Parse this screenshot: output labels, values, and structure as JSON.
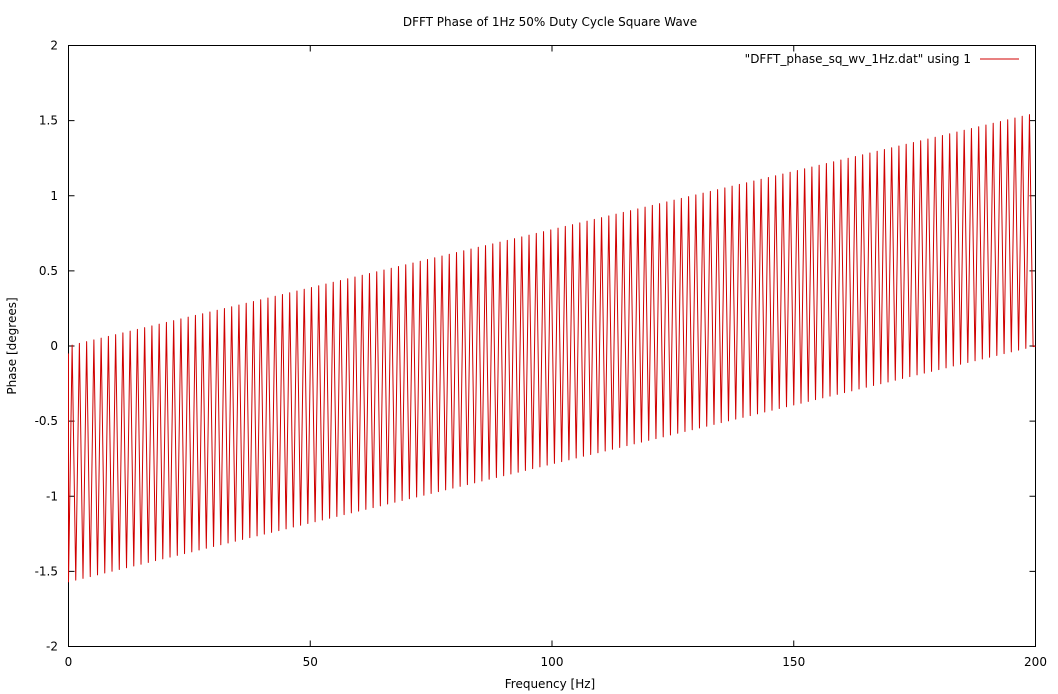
{
  "chart_data": {
    "type": "line",
    "title": "DFFT Phase of 1Hz 50% Duty Cycle Square Wave",
    "xlabel": "Frequency [Hz]",
    "ylabel": "Phase [degrees]",
    "xlim": [
      0,
      200
    ],
    "ylim": [
      -2,
      2
    ],
    "x_ticks": [
      0,
      50,
      100,
      150,
      200
    ],
    "y_ticks": [
      -2,
      -1.5,
      -1,
      -0.5,
      0,
      0.5,
      1,
      1.5,
      2
    ],
    "x_tick_labels": [
      "0",
      "50",
      "100",
      "150",
      "200"
    ],
    "y_tick_labels": [
      "-2",
      "-1.5",
      "-1",
      "-0.5",
      "0",
      "0.5",
      "1",
      "1.5",
      "2"
    ],
    "grid": false,
    "legend_position": "top-right",
    "series": [
      {
        "name": "\"DFFT_phase_sq_wv_1Hz.dat\" using 1",
        "color": "#d00000",
        "pattern": "sawtooth",
        "period_hz": 1.5,
        "peak_start": 0.0,
        "peak_end": 1.55,
        "trough_start": -1.57,
        "trough_end": 0.0
      }
    ]
  }
}
